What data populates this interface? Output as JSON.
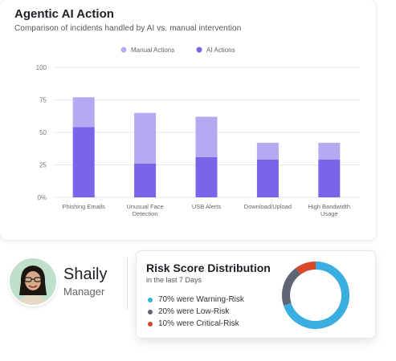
{
  "header": {
    "title": "Agentic AI Action",
    "subtitle": "Comparison of incidents handled by AI vs. manual intervention"
  },
  "chart_data": {
    "type": "bar",
    "stacked": true,
    "categories": [
      [
        "Phishing Emails"
      ],
      [
        "Unusual Face",
        "Detection"
      ],
      [
        "USB Alerts"
      ],
      [
        "Download/Upload"
      ],
      [
        "High Bandwidth",
        "Usage"
      ]
    ],
    "series": [
      {
        "name": "AI Actions",
        "color": "#7b63ea",
        "values": [
          54,
          26,
          31,
          29,
          29
        ]
      },
      {
        "name": "Manual Actions",
        "color": "#b7a8f2",
        "values": [
          23,
          39,
          31,
          13,
          13
        ]
      }
    ],
    "ylim": [
      0,
      100
    ],
    "yticks": [
      0,
      25,
      50,
      75,
      100
    ],
    "ytick_labels": [
      "0%",
      "25",
      "50",
      "75",
      "100"
    ],
    "legend_position": "top-center",
    "grid": true
  },
  "profile": {
    "name": "Shaily",
    "role": "Manager",
    "avatar_icon": "person-avatar-icon"
  },
  "risk": {
    "title": "Risk Score Distribution",
    "subtitle": "in the last 7 Days",
    "items": [
      {
        "label": "70% were Warning-Risk",
        "value": 70,
        "color": "#3aaee0"
      },
      {
        "label": "20% were Low-Risk",
        "value": 20,
        "color": "#5d6474"
      },
      {
        "label": "10% were Critical-Risk",
        "value": 10,
        "color": "#d9472b"
      }
    ]
  }
}
